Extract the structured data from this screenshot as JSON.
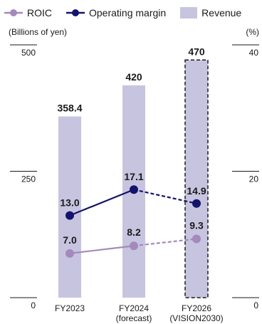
{
  "legend": {
    "roic": "ROIC",
    "margin": "Operating margin",
    "revenue": "Revenue"
  },
  "units": {
    "left": "(Billions of yen)",
    "right": "(%)"
  },
  "colors": {
    "revenue": "#c7c4df",
    "roic": "#a489bd",
    "margin": "#14136b",
    "axis": "#1a1a1a"
  },
  "chart_data": {
    "type": "bar",
    "categories": [
      {
        "line1": "FY2023",
        "line2": ""
      },
      {
        "line1": "FY2024",
        "line2": "(forecast)"
      },
      {
        "line1": "FY2026",
        "line2": "(VISION2030)"
      }
    ],
    "series": [
      {
        "name": "Revenue",
        "type": "bar",
        "axis": "left",
        "values": [
          358.4,
          420,
          470
        ],
        "labels": [
          "358.4",
          "420",
          "470"
        ],
        "target_index": 2
      },
      {
        "name": "Operating margin",
        "type": "line",
        "axis": "right",
        "values": [
          13.0,
          17.1,
          14.9
        ],
        "labels": [
          "13.0",
          "17.1",
          "14.9"
        ],
        "dashed_from_index": 1
      },
      {
        "name": "ROIC",
        "type": "line",
        "axis": "right",
        "values": [
          7.0,
          8.2,
          9.3
        ],
        "labels": [
          "7.0",
          "8.2",
          "9.3"
        ],
        "dashed_from_index": 1
      }
    ],
    "left_axis": {
      "ylim": [
        0,
        500
      ],
      "ticks": [
        "0",
        "250",
        "500"
      ]
    },
    "right_axis": {
      "ylim": [
        0,
        40
      ],
      "ticks": [
        "0",
        "20",
        "40"
      ]
    },
    "legend_position": "top-left",
    "grid": false
  }
}
